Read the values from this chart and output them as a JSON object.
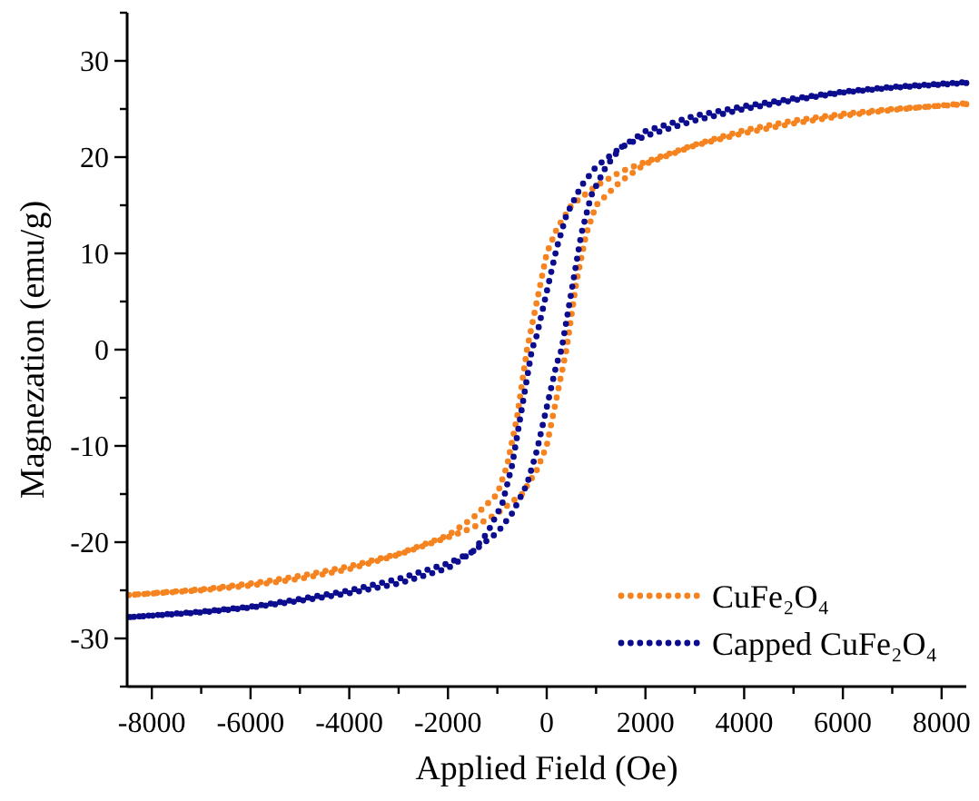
{
  "chart_data": {
    "type": "line",
    "xlabel": "Applied Field (Oe)",
    "ylabel": "Magnezation (emu/g)",
    "xlim": [
      -8500,
      8500
    ],
    "ylim": [
      -35,
      35
    ],
    "xticks": [
      -8000,
      {
        "value": -7000,
        "label": null
      },
      -6000,
      {
        "value": -5000,
        "label": null
      },
      -4000,
      {
        "value": -3000,
        "label": null
      },
      -2000,
      {
        "value": -1000,
        "label": null
      },
      0,
      {
        "value": 1000,
        "label": null
      },
      2000,
      {
        "value": 3000,
        "label": null
      },
      4000,
      {
        "value": 5000,
        "label": null
      },
      6000,
      {
        "value": 7000,
        "label": null
      },
      8000
    ],
    "yticks": [
      {
        "value": -35,
        "label": null
      },
      -30,
      {
        "value": -25,
        "label": null
      },
      -20,
      {
        "value": -15,
        "label": null
      },
      -10,
      {
        "value": -5,
        "label": null
      },
      0,
      {
        "value": 5,
        "label": null
      },
      10,
      {
        "value": 15,
        "label": null
      },
      20,
      {
        "value": 25,
        "label": null
      },
      30,
      {
        "value": 35,
        "label": null
      }
    ],
    "grid": false,
    "legend": "bottom right",
    "marker": "none",
    "line_style": "dotted",
    "series": [
      {
        "name": "CuFe₂O₄",
        "color": "#f5831f",
        "x": [
          8500,
          7000,
          6000,
          5000,
          4000,
          3000,
          2000,
          1500,
          1000,
          500,
          200,
          0,
          -200,
          -400,
          -600,
          -800,
          -1000,
          -1500,
          -2000,
          -3000,
          -4000,
          -5000,
          -6000,
          -7000,
          -8500,
          -7000,
          -6000,
          -5000,
          -4000,
          -3000,
          -2000,
          -1500,
          -1000,
          -500,
          -200,
          0,
          200,
          400,
          600,
          800,
          1000,
          1500,
          2000,
          3000,
          4000,
          5000,
          6000,
          7000,
          8500
        ],
        "values": [
          25.5,
          25,
          24.5,
          23.8,
          22.8,
          21.3,
          19.5,
          18.5,
          17,
          15,
          12.5,
          10,
          5,
          0,
          -7,
          -12,
          -15,
          -17.5,
          -19.3,
          -21.2,
          -22.5,
          -23.5,
          -24.3,
          -24.9,
          -25.5,
          -25,
          -24.5,
          -23.8,
          -22.8,
          -21.3,
          -19.5,
          -18.5,
          -17,
          -15,
          -12.5,
          -10,
          -5,
          0,
          7,
          12,
          15,
          17.5,
          19.3,
          21.2,
          22.5,
          23.5,
          24.3,
          24.9,
          25.6
        ]
      },
      {
        "name": "Capped CuFe₂O₄",
        "color": "#0c0c8e",
        "x": [
          8500,
          7000,
          6000,
          5000,
          4000,
          3000,
          2000,
          1500,
          1000,
          700,
          400,
          200,
          0,
          -200,
          -300,
          -500,
          -700,
          -900,
          -1200,
          -1500,
          -2000,
          -3000,
          -4000,
          -5000,
          -6000,
          -7000,
          -8500,
          -7000,
          -6000,
          -5000,
          -4000,
          -3000,
          -2000,
          -1500,
          -1000,
          -700,
          -400,
          -200,
          0,
          200,
          300,
          500,
          700,
          900,
          1200,
          1500,
          2000,
          3000,
          4000,
          5000,
          6000,
          7000,
          8500
        ],
        "values": [
          27.7,
          27.2,
          26.7,
          25.9,
          25,
          23.8,
          22.2,
          21,
          19,
          17,
          14,
          10.5,
          6,
          1.5,
          0,
          -6,
          -12,
          -16,
          -19,
          -21,
          -22.7,
          -24.3,
          -25.3,
          -26.1,
          -26.8,
          -27.3,
          -27.8,
          -27.2,
          -26.7,
          -25.9,
          -25,
          -23.8,
          -22.2,
          -21,
          -19,
          -17,
          -14,
          -10.5,
          -6,
          -1.5,
          0,
          6,
          12,
          16,
          19,
          21,
          22.7,
          24.3,
          25.3,
          26.1,
          26.8,
          27.3,
          27.8
        ]
      }
    ]
  }
}
